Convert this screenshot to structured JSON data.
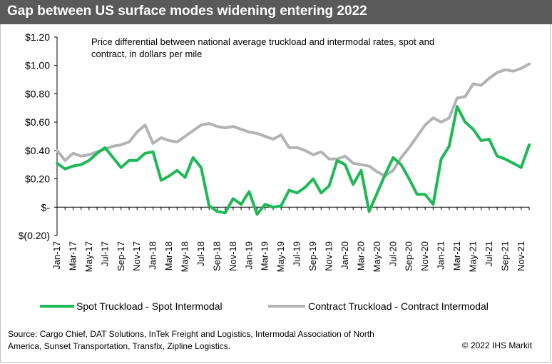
{
  "header": {
    "title": "Gap between US surface modes widening entering 2022"
  },
  "subtitle_line1": "Price differential between national average truckload and intermodal rates, spot and",
  "subtitle_line2": "contract, in dollars per mile",
  "footer": {
    "source": "Source: Cargo Chief, DAT Solutions, InTek Freight and Logistics, Intermodal Association of North America, Sunset Transportation, Transfix, Zipline Logistics.",
    "copyright": "© 2022 IHS Markit"
  },
  "colors": {
    "title_bar": "#5a5a5a",
    "spot": "#1db954",
    "contract": "#b3b3b3",
    "axis": "#000000"
  },
  "chart_data": {
    "type": "line",
    "title": "",
    "xlabel": "",
    "ylabel": "",
    "ylim": [
      -0.2,
      1.2
    ],
    "y_ticks": [
      1.2,
      1.0,
      0.8,
      0.6,
      0.4,
      0.2,
      0,
      -0.2
    ],
    "y_tick_labels": [
      "$1.20",
      "$1.00",
      "$0.80",
      "$0.60",
      "$0.40",
      "$0.20",
      "$-",
      "$(0.20)"
    ],
    "x": [
      "Jan-17",
      "Feb-17",
      "Mar-17",
      "Apr-17",
      "May-17",
      "Jun-17",
      "Jul-17",
      "Aug-17",
      "Sep-17",
      "Oct-17",
      "Nov-17",
      "Dec-17",
      "Jan-18",
      "Feb-18",
      "Mar-18",
      "Apr-18",
      "May-18",
      "Jun-18",
      "Jul-18",
      "Aug-18",
      "Sep-18",
      "Oct-18",
      "Nov-18",
      "Dec-18",
      "Jan-19",
      "Feb-19",
      "Mar-19",
      "Apr-19",
      "May-19",
      "Jun-19",
      "Jul-19",
      "Aug-19",
      "Sep-19",
      "Oct-19",
      "Nov-19",
      "Dec-19",
      "Jan-20",
      "Feb-20",
      "Mar-20",
      "Apr-20",
      "May-20",
      "Jun-20",
      "Jul-20",
      "Aug-20",
      "Sep-20",
      "Oct-20",
      "Nov-20",
      "Dec-20",
      "Jan-21",
      "Feb-21",
      "Mar-21",
      "Apr-21",
      "May-21",
      "Jun-21",
      "Jul-21",
      "Aug-21",
      "Sep-21",
      "Oct-21",
      "Nov-21",
      "Dec-21"
    ],
    "x_tick_labels": [
      "Jan-17",
      "Mar-17",
      "May-17",
      "Jul-17",
      "Sep-17",
      "Nov-17",
      "Jan-18",
      "Mar-18",
      "May-18",
      "Jul-18",
      "Sep-18",
      "Nov-18",
      "Jan-19",
      "Mar-19",
      "May-19",
      "Jul-19",
      "Sep-19",
      "Nov-19",
      "Jan-20",
      "Mar-20",
      "May-20",
      "Jul-20",
      "Sep-20",
      "Nov-20",
      "Jan-21",
      "Mar-21",
      "May-21",
      "Jul-21",
      "Sep-21",
      "Nov-21"
    ],
    "series": [
      {
        "name": "Spot Truckload - Spot Intermodal",
        "color": "#1db954",
        "values": [
          0.31,
          0.27,
          0.29,
          0.3,
          0.33,
          0.38,
          0.42,
          0.35,
          0.28,
          0.33,
          0.33,
          0.38,
          0.39,
          0.19,
          0.22,
          0.26,
          0.21,
          0.35,
          0.28,
          0.01,
          -0.03,
          -0.04,
          0.06,
          0.02,
          0.11,
          -0.05,
          0.02,
          0.0,
          0.01,
          0.12,
          0.1,
          0.14,
          0.2,
          0.1,
          0.15,
          0.33,
          0.3,
          0.16,
          0.26,
          -0.03,
          0.1,
          0.23,
          0.35,
          0.3,
          0.2,
          0.09,
          0.09,
          0.02,
          0.34,
          0.43,
          0.71,
          0.6,
          0.55,
          0.47,
          0.48,
          0.36,
          0.34,
          0.31,
          0.28,
          0.44
        ]
      },
      {
        "name": "Contract Truckload - Contract Intermodal",
        "color": "#b3b3b3",
        "values": [
          0.4,
          0.33,
          0.38,
          0.36,
          0.37,
          0.39,
          0.41,
          0.43,
          0.44,
          0.46,
          0.53,
          0.58,
          0.45,
          0.49,
          0.47,
          0.46,
          0.5,
          0.54,
          0.58,
          0.59,
          0.57,
          0.56,
          0.57,
          0.55,
          0.53,
          0.52,
          0.5,
          0.48,
          0.51,
          0.42,
          0.42,
          0.4,
          0.37,
          0.39,
          0.34,
          0.34,
          0.36,
          0.31,
          0.3,
          0.29,
          0.25,
          0.22,
          0.26,
          0.35,
          0.42,
          0.5,
          0.58,
          0.63,
          0.6,
          0.63,
          0.77,
          0.78,
          0.87,
          0.86,
          0.91,
          0.95,
          0.97,
          0.96,
          0.98,
          1.01
        ]
      }
    ],
    "legend_position": "bottom",
    "grid": false
  }
}
